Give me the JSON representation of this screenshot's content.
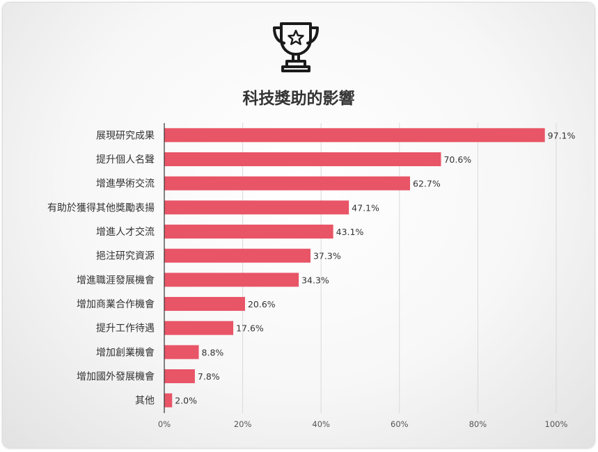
{
  "icon": "trophy-icon",
  "colors": {
    "bar": "#e85566",
    "grid": "#d9d9d9",
    "axis": "#333333"
  },
  "chart_data": {
    "type": "bar",
    "orientation": "horizontal",
    "title": "科技獎助的影響",
    "categories": [
      "展現研究成果",
      "提升個人名聲",
      "增進學術交流",
      "有助於獲得其他獎勵表揚",
      "增進人才交流",
      "挹注研究資源",
      "增進職涯發展機會",
      "增加商業合作機會",
      "提升工作待遇",
      "增加創業機會",
      "增加國外發展機會",
      "其他"
    ],
    "values": [
      97.1,
      70.6,
      62.7,
      47.1,
      43.1,
      37.3,
      34.3,
      20.6,
      17.6,
      8.8,
      7.8,
      2.0
    ],
    "value_labels": [
      "97.1%",
      "70.6%",
      "62.7%",
      "47.1%",
      "43.1%",
      "37.3%",
      "34.3%",
      "20.6%",
      "17.6%",
      "8.8%",
      "7.8%",
      "2.0%"
    ],
    "xlim": [
      0,
      100
    ],
    "ticks": [
      0,
      20,
      40,
      60,
      80,
      100
    ],
    "tick_labels": [
      "0%",
      "20%",
      "40%",
      "60%",
      "80%",
      "100%"
    ],
    "grid": true,
    "legend": "none"
  }
}
